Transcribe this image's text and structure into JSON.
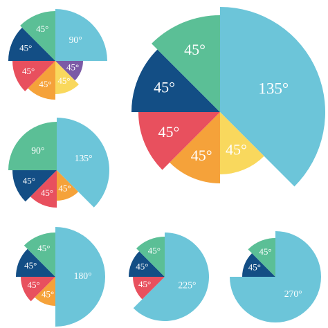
{
  "chart_data": [
    {
      "type": "pie",
      "values": [
        90,
        45,
        45,
        45,
        45,
        45,
        45
      ],
      "value_labels": [
        "90°",
        "45°",
        "45°",
        "45°",
        "45°",
        "45°",
        "45°"
      ],
      "colors": [
        "#6cc5d9",
        "#7b5aa6",
        "#f9d85d",
        "#f5a23a",
        "#e8505e",
        "#134e85",
        "#5bbf96"
      ]
    },
    {
      "type": "pie",
      "values": [
        135,
        45,
        45,
        45,
        45,
        45
      ],
      "value_labels": [
        "135°",
        "45°",
        "45°",
        "45°",
        "45°",
        "45°"
      ],
      "colors": [
        "#6cc5d9",
        "#f9d85d",
        "#f5a23a",
        "#e8505e",
        "#134e85",
        "#5bbf96"
      ]
    },
    {
      "type": "pie",
      "values": [
        135,
        45,
        45,
        45,
        90
      ],
      "value_labels": [
        "135°",
        "45°",
        "45°",
        "45°",
        "90°"
      ],
      "colors": [
        "#6cc5d9",
        "#f5a23a",
        "#e8505e",
        "#134e85",
        "#5bbf96"
      ]
    },
    {
      "type": "pie",
      "values": [
        180,
        45,
        45,
        45,
        45
      ],
      "value_labels": [
        "180°",
        "45°",
        "45°",
        "45°",
        "45°"
      ],
      "colors": [
        "#6cc5d9",
        "#f5a23a",
        "#e8505e",
        "#134e85",
        "#5bbf96"
      ]
    },
    {
      "type": "pie",
      "values": [
        225,
        45,
        45,
        45
      ],
      "value_labels": [
        "225°",
        "45°",
        "45°",
        "45°"
      ],
      "colors": [
        "#6cc5d9",
        "#e8505e",
        "#134e85",
        "#5bbf96"
      ]
    },
    {
      "type": "pie",
      "values": [
        270,
        45,
        45
      ],
      "value_labels": [
        "270°",
        "45°",
        "45°"
      ],
      "colors": [
        "#6cc5d9",
        "#134e85",
        "#5bbf96"
      ]
    }
  ]
}
